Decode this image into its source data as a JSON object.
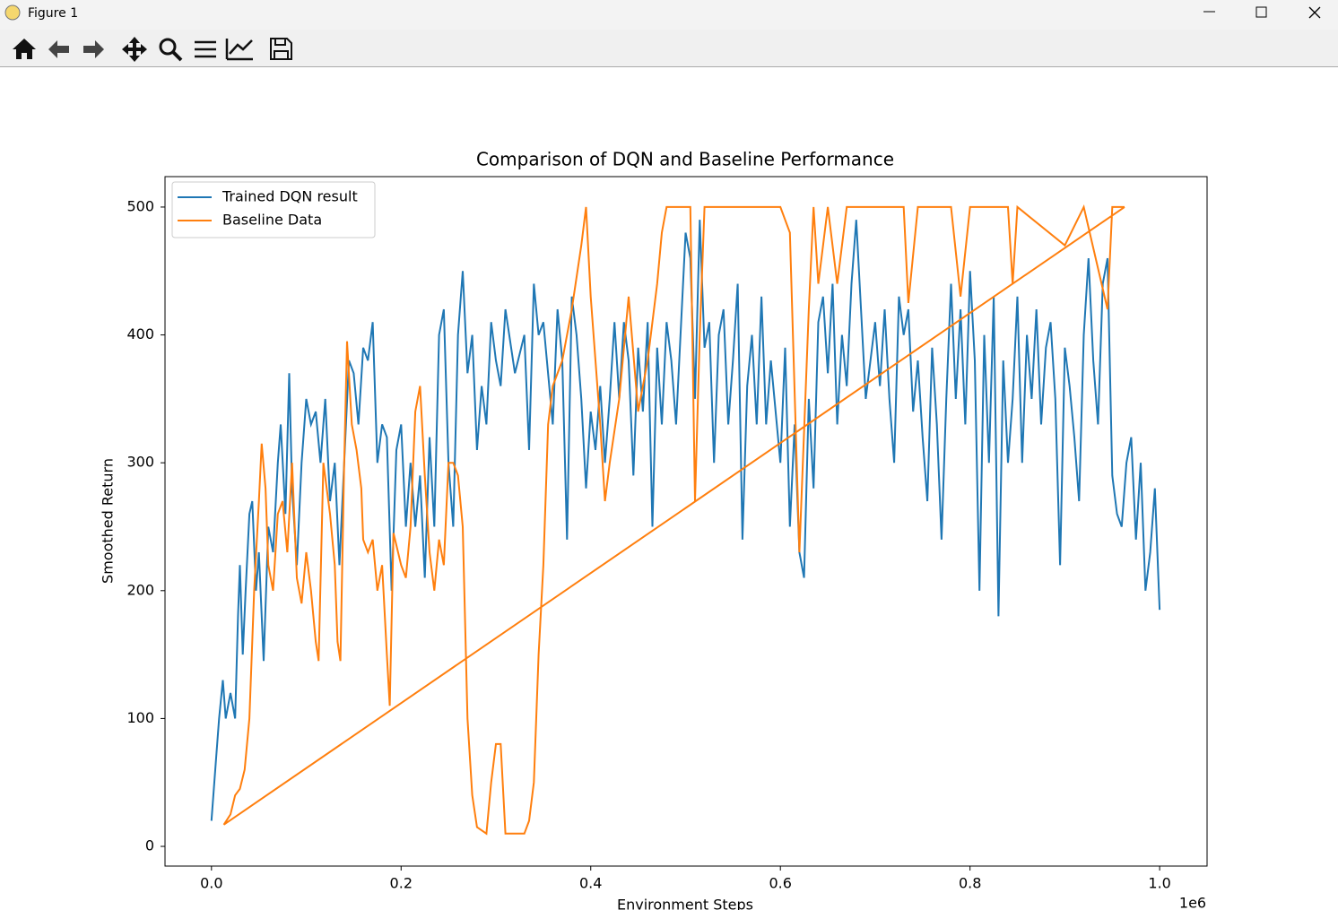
{
  "window": {
    "title": "Figure 1"
  },
  "chart_data": {
    "type": "line",
    "title": "Comparison of DQN and Baseline Performance",
    "x_label": "Environment Steps",
    "y_label": "Smoothed Return",
    "x_offset_label": "1e6",
    "xlim": [
      -0.049,
      1.05
    ],
    "ylim": [
      -15.4,
      523.8
    ],
    "xticks": [
      {
        "value": 0,
        "label": "0.0"
      },
      0.2,
      0.4,
      0.6,
      0.8,
      {
        "value": 1,
        "label": "1.0"
      }
    ],
    "yticks": [
      0,
      100,
      200,
      300,
      400,
      500
    ],
    "legend": "upper left",
    "series": [
      {
        "name": "Trained DQN result",
        "color": "#1f77b4",
        "x": [
          0.0,
          0.005,
          0.008,
          0.012,
          0.015,
          0.02,
          0.025,
          0.028,
          0.03,
          0.033,
          0.036,
          0.04,
          0.043,
          0.047,
          0.05,
          0.055,
          0.06,
          0.065,
          0.07,
          0.073,
          0.078,
          0.082,
          0.085,
          0.09,
          0.095,
          0.1,
          0.105,
          0.11,
          0.115,
          0.12,
          0.125,
          0.13,
          0.135,
          0.14,
          0.145,
          0.15,
          0.155,
          0.16,
          0.165,
          0.17,
          0.175,
          0.18,
          0.185,
          0.19,
          0.195,
          0.2,
          0.205,
          0.21,
          0.215,
          0.22,
          0.225,
          0.23,
          0.235,
          0.24,
          0.245,
          0.25,
          0.255,
          0.26,
          0.265,
          0.27,
          0.275,
          0.28,
          0.285,
          0.29,
          0.295,
          0.3,
          0.305,
          0.31,
          0.32,
          0.33,
          0.335,
          0.34,
          0.345,
          0.35,
          0.36,
          0.365,
          0.37,
          0.375,
          0.38,
          0.385,
          0.39,
          0.395,
          0.4,
          0.405,
          0.41,
          0.415,
          0.42,
          0.425,
          0.43,
          0.435,
          0.44,
          0.445,
          0.45,
          0.455,
          0.46,
          0.465,
          0.47,
          0.475,
          0.48,
          0.485,
          0.49,
          0.5,
          0.505,
          0.51,
          0.515,
          0.52,
          0.525,
          0.53,
          0.535,
          0.54,
          0.545,
          0.55,
          0.555,
          0.56,
          0.565,
          0.57,
          0.575,
          0.58,
          0.585,
          0.59,
          0.6,
          0.605,
          0.61,
          0.615,
          0.62,
          0.625,
          0.63,
          0.635,
          0.64,
          0.645,
          0.65,
          0.655,
          0.66,
          0.665,
          0.67,
          0.675,
          0.68,
          0.685,
          0.69,
          0.7,
          0.705,
          0.71,
          0.715,
          0.72,
          0.725,
          0.73,
          0.735,
          0.74,
          0.745,
          0.75,
          0.755,
          0.76,
          0.765,
          0.77,
          0.775,
          0.78,
          0.785,
          0.79,
          0.795,
          0.8,
          0.805,
          0.81,
          0.815,
          0.82,
          0.825,
          0.83,
          0.835,
          0.84,
          0.845,
          0.85,
          0.855,
          0.86,
          0.865,
          0.87,
          0.875,
          0.88,
          0.885,
          0.89,
          0.895,
          0.9,
          0.905,
          0.91,
          0.915,
          0.92,
          0.925,
          0.93,
          0.935,
          0.94,
          0.945,
          0.95,
          0.955,
          0.96,
          0.965,
          0.97,
          0.975,
          0.98,
          0.985,
          0.99,
          0.995,
          1.0
        ],
        "values": [
          20,
          70,
          100,
          130,
          100,
          120,
          100,
          180,
          220,
          150,
          200,
          260,
          270,
          200,
          230,
          145,
          250,
          230,
          300,
          330,
          260,
          370,
          280,
          220,
          300,
          350,
          330,
          340,
          300,
          350,
          270,
          300,
          220,
          300,
          380,
          370,
          330,
          390,
          380,
          410,
          300,
          330,
          320,
          200,
          310,
          330,
          250,
          300,
          250,
          290,
          210,
          320,
          250,
          400,
          420,
          300,
          250,
          400,
          450,
          370,
          400,
          310,
          360,
          330,
          410,
          380,
          360,
          420,
          370,
          400,
          310,
          440,
          400,
          410,
          330,
          420,
          380,
          240,
          430,
          400,
          350,
          280,
          340,
          310,
          360,
          300,
          350,
          410,
          350,
          410,
          380,
          290,
          390,
          340,
          410,
          250,
          390,
          330,
          410,
          380,
          330,
          480,
          460,
          350,
          490,
          390,
          410,
          300,
          400,
          420,
          330,
          380,
          440,
          240,
          360,
          400,
          330,
          430,
          330,
          380,
          300,
          390,
          250,
          330,
          230,
          210,
          350,
          280,
          410,
          430,
          370,
          440,
          330,
          400,
          360,
          440,
          490,
          420,
          350,
          410,
          360,
          420,
          350,
          300,
          430,
          400,
          420,
          340,
          380,
          320,
          270,
          390,
          330,
          240,
          350,
          440,
          350,
          420,
          330,
          450,
          380,
          200,
          400,
          300,
          430,
          180,
          380,
          300,
          350,
          430,
          300,
          400,
          350,
          420,
          330,
          390,
          410,
          350,
          220,
          390,
          360,
          320,
          270,
          400,
          460,
          380,
          330,
          440,
          460,
          290,
          260,
          250,
          300,
          320,
          240,
          300,
          200,
          230,
          280,
          185
        ]
      },
      {
        "name": "Baseline Data",
        "color": "#ff7f0e",
        "x": [
          0.963,
          0.013,
          0.02,
          0.025,
          0.03,
          0.035,
          0.04,
          0.045,
          0.05,
          0.053,
          0.057,
          0.06,
          0.065,
          0.07,
          0.075,
          0.08,
          0.085,
          0.09,
          0.095,
          0.1,
          0.105,
          0.11,
          0.113,
          0.118,
          0.125,
          0.13,
          0.133,
          0.136,
          0.14,
          0.143,
          0.148,
          0.153,
          0.158,
          0.16,
          0.165,
          0.17,
          0.175,
          0.18,
          0.185,
          0.188,
          0.192,
          0.2,
          0.205,
          0.21,
          0.215,
          0.22,
          0.225,
          0.23,
          0.235,
          0.24,
          0.245,
          0.25,
          0.255,
          0.26,
          0.265,
          0.27,
          0.275,
          0.28,
          0.29,
          0.295,
          0.3,
          0.305,
          0.31,
          0.33,
          0.335,
          0.34,
          0.345,
          0.35,
          0.355,
          0.36,
          0.37,
          0.38,
          0.39,
          0.395,
          0.4,
          0.41,
          0.415,
          0.42,
          0.43,
          0.44,
          0.45,
          0.46,
          0.47,
          0.475,
          0.48,
          0.505,
          0.51,
          0.515,
          0.52,
          0.6,
          0.61,
          0.62,
          0.63,
          0.635,
          0.64,
          0.65,
          0.66,
          0.67,
          0.73,
          0.735,
          0.745,
          0.78,
          0.79,
          0.8,
          0.84,
          0.845,
          0.85,
          0.9,
          0.92,
          0.945,
          0.95,
          0.963
        ],
        "values": [
          500,
          17,
          25,
          40,
          45,
          60,
          100,
          200,
          270,
          315,
          280,
          220,
          200,
          260,
          270,
          230,
          300,
          210,
          190,
          230,
          200,
          160,
          145,
          300,
          260,
          220,
          160,
          145,
          300,
          395,
          330,
          310,
          280,
          240,
          230,
          240,
          200,
          220,
          150,
          110,
          245,
          220,
          210,
          250,
          340,
          360,
          290,
          230,
          200,
          240,
          220,
          300,
          300,
          290,
          250,
          100,
          40,
          15,
          10,
          50,
          80,
          80,
          10,
          10,
          20,
          50,
          150,
          220,
          330,
          360,
          380,
          420,
          470,
          500,
          430,
          330,
          270,
          300,
          350,
          430,
          340,
          380,
          440,
          480,
          500,
          500,
          270,
          400,
          500,
          500,
          480,
          230,
          420,
          500,
          440,
          500,
          440,
          500,
          500,
          425,
          500,
          500,
          430,
          500,
          500,
          440,
          500,
          470,
          500,
          420,
          500,
          500
        ]
      }
    ]
  }
}
